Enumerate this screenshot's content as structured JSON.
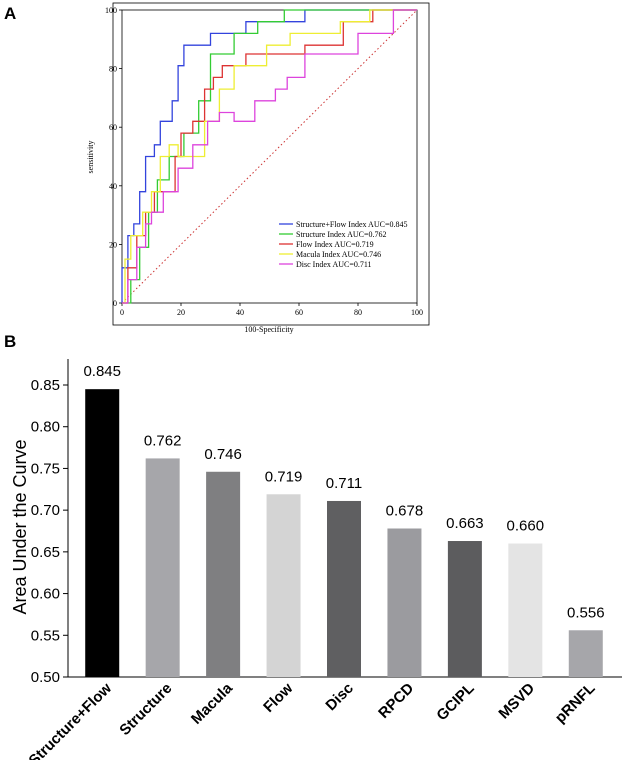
{
  "panels": {
    "a": "A",
    "b": "B"
  },
  "chart_data": [
    {
      "type": "line",
      "title": "",
      "xlabel": "100-Specificity",
      "ylabel": "sensitivity",
      "xlim": [
        0,
        100
      ],
      "ylim": [
        0,
        100
      ],
      "xticks": [
        "0",
        "20",
        "40",
        "60",
        "80",
        "100"
      ],
      "yticks": [
        "0",
        "20",
        "40",
        "60",
        "80",
        "100"
      ],
      "reference_line": {
        "color": "#cc3333",
        "style": "dotted",
        "from": [
          0,
          0
        ],
        "to": [
          100,
          100
        ]
      },
      "series": [
        {
          "name": "Structure+Flow Index",
          "legend": "Structure+Flow Index  AUC=0.845",
          "color": "#3344dd",
          "points": [
            [
              0,
              0
            ],
            [
              0,
              12
            ],
            [
              2,
              12
            ],
            [
              2,
              23
            ],
            [
              4,
              23
            ],
            [
              4,
              27
            ],
            [
              6,
              27
            ],
            [
              6,
              38
            ],
            [
              8,
              38
            ],
            [
              8,
              50
            ],
            [
              11,
              50
            ],
            [
              11,
              54
            ],
            [
              13,
              54
            ],
            [
              13,
              62
            ],
            [
              17,
              62
            ],
            [
              17,
              69
            ],
            [
              19,
              69
            ],
            [
              19,
              81
            ],
            [
              21,
              81
            ],
            [
              21,
              88
            ],
            [
              30,
              88
            ],
            [
              30,
              92
            ],
            [
              42,
              92
            ],
            [
              42,
              96
            ],
            [
              62,
              96
            ],
            [
              62,
              100
            ],
            [
              100,
              100
            ]
          ]
        },
        {
          "name": "Structure Index",
          "legend": "Structure Index  AUC=0.762",
          "color": "#33cc33",
          "points": [
            [
              0,
              0
            ],
            [
              3,
              0
            ],
            [
              3,
              8
            ],
            [
              6,
              8
            ],
            [
              6,
              19
            ],
            [
              9,
              19
            ],
            [
              9,
              31
            ],
            [
              12,
              31
            ],
            [
              12,
              42
            ],
            [
              16,
              42
            ],
            [
              16,
              50
            ],
            [
              21,
              50
            ],
            [
              21,
              58
            ],
            [
              26,
              58
            ],
            [
              26,
              69
            ],
            [
              30,
              69
            ],
            [
              30,
              85
            ],
            [
              38,
              85
            ],
            [
              38,
              92
            ],
            [
              46,
              92
            ],
            [
              46,
              96
            ],
            [
              55,
              96
            ],
            [
              55,
              100
            ],
            [
              100,
              100
            ]
          ]
        },
        {
          "name": "Flow Index",
          "legend": "Flow Index  AUC=0.719",
          "color": "#dd3333",
          "points": [
            [
              0,
              0
            ],
            [
              2,
              0
            ],
            [
              2,
              12
            ],
            [
              5,
              12
            ],
            [
              5,
              23
            ],
            [
              8,
              23
            ],
            [
              8,
              31
            ],
            [
              11,
              31
            ],
            [
              11,
              38
            ],
            [
              18,
              38
            ],
            [
              18,
              50
            ],
            [
              20,
              50
            ],
            [
              20,
              58
            ],
            [
              24,
              58
            ],
            [
              24,
              62
            ],
            [
              28,
              62
            ],
            [
              28,
              73
            ],
            [
              31,
              73
            ],
            [
              31,
              77
            ],
            [
              34,
              77
            ],
            [
              34,
              81
            ],
            [
              42,
              81
            ],
            [
              42,
              85
            ],
            [
              62,
              85
            ],
            [
              62,
              88
            ],
            [
              75,
              88
            ],
            [
              75,
              96
            ],
            [
              85,
              96
            ],
            [
              85,
              100
            ],
            [
              100,
              100
            ]
          ]
        },
        {
          "name": "Macula Index",
          "legend": "Macula Index  AUC=0.746",
          "color": "#eeee33",
          "points": [
            [
              0,
              0
            ],
            [
              1,
              0
            ],
            [
              1,
              15
            ],
            [
              3,
              15
            ],
            [
              3,
              23
            ],
            [
              7,
              23
            ],
            [
              7,
              31
            ],
            [
              10,
              31
            ],
            [
              10,
              38
            ],
            [
              13,
              38
            ],
            [
              13,
              50
            ],
            [
              16,
              50
            ],
            [
              16,
              54
            ],
            [
              19,
              54
            ],
            [
              19,
              50
            ],
            [
              28,
              50
            ],
            [
              28,
              62
            ],
            [
              33,
              62
            ],
            [
              33,
              73
            ],
            [
              38,
              73
            ],
            [
              38,
              81
            ],
            [
              49,
              81
            ],
            [
              49,
              88
            ],
            [
              57,
              88
            ],
            [
              57,
              92
            ],
            [
              74,
              92
            ],
            [
              74,
              96
            ],
            [
              84,
              96
            ],
            [
              84,
              100
            ],
            [
              100,
              100
            ]
          ]
        },
        {
          "name": "Disc Index",
          "legend": "Disc Index  AUC=0.711",
          "color": "#dd44dd",
          "points": [
            [
              0,
              0
            ],
            [
              2,
              0
            ],
            [
              2,
              8
            ],
            [
              5,
              8
            ],
            [
              5,
              19
            ],
            [
              8,
              19
            ],
            [
              8,
              27
            ],
            [
              10,
              27
            ],
            [
              10,
              31
            ],
            [
              14,
              31
            ],
            [
              14,
              38
            ],
            [
              19,
              38
            ],
            [
              19,
              46
            ],
            [
              24,
              46
            ],
            [
              24,
              54
            ],
            [
              29,
              54
            ],
            [
              29,
              62
            ],
            [
              33,
              62
            ],
            [
              33,
              65
            ],
            [
              38,
              65
            ],
            [
              38,
              62
            ],
            [
              45,
              62
            ],
            [
              45,
              69
            ],
            [
              52,
              69
            ],
            [
              52,
              73
            ],
            [
              56,
              73
            ],
            [
              56,
              77
            ],
            [
              62,
              77
            ],
            [
              62,
              85
            ],
            [
              80,
              85
            ],
            [
              80,
              92
            ],
            [
              92,
              92
            ],
            [
              92,
              100
            ],
            [
              100,
              100
            ]
          ]
        }
      ]
    },
    {
      "type": "bar",
      "title": "",
      "xlabel": "",
      "ylabel": "Area Under the Curve",
      "ylim": [
        0.5,
        0.85
      ],
      "yticks": [
        "0.50",
        "0.55",
        "0.60",
        "0.65",
        "0.70",
        "0.75",
        "0.80",
        "0.85"
      ],
      "categories": [
        "Structure+Flow",
        "Structure",
        "Macula",
        "Flow",
        "Disc",
        "RPCD",
        "GCIPL",
        "MSVD",
        "pRNFL"
      ],
      "values": [
        0.845,
        0.762,
        0.746,
        0.719,
        0.711,
        0.678,
        0.663,
        0.66,
        0.556
      ],
      "labels": [
        "0.845",
        "0.762",
        "0.746",
        "0.719",
        "0.711",
        "0.678",
        "0.663",
        "0.660",
        "0.556"
      ],
      "colors": [
        "#000000",
        "#a6a6aa",
        "#7f7f81",
        "#d4d4d4",
        "#5f5f61",
        "#9b9b9f",
        "#5c5c5e",
        "#e4e4e4",
        "#a6a6aa"
      ]
    }
  ]
}
